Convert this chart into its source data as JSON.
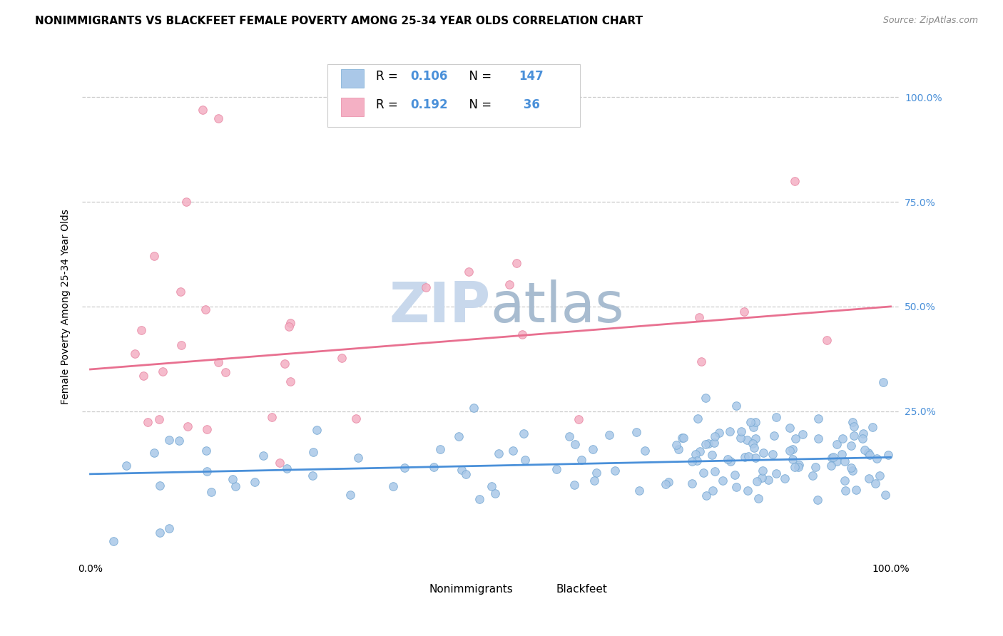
{
  "title": "NONIMMIGRANTS VS BLACKFEET FEMALE POVERTY AMONG 25-34 YEAR OLDS CORRELATION CHART",
  "source": "Source: ZipAtlas.com",
  "ylabel": "Female Poverty Among 25-34 Year Olds",
  "legend_R1": "0.106",
  "legend_N1": "147",
  "legend_R2": "0.192",
  "legend_N2": "36",
  "series1_color": "#aac8e8",
  "series1_edge": "#78aad4",
  "series2_color": "#f4b0c4",
  "series2_edge": "#e888a4",
  "trendline1_color": "#4a90d9",
  "trendline2_color": "#e87090",
  "right_tick_color": "#4a90d9",
  "background_color": "#ffffff",
  "grid_color": "#cccccc",
  "watermark_color": "#dce8f4",
  "title_fontsize": 11,
  "axis_label_fontsize": 10,
  "tick_fontsize": 10,
  "legend_fontsize": 12
}
